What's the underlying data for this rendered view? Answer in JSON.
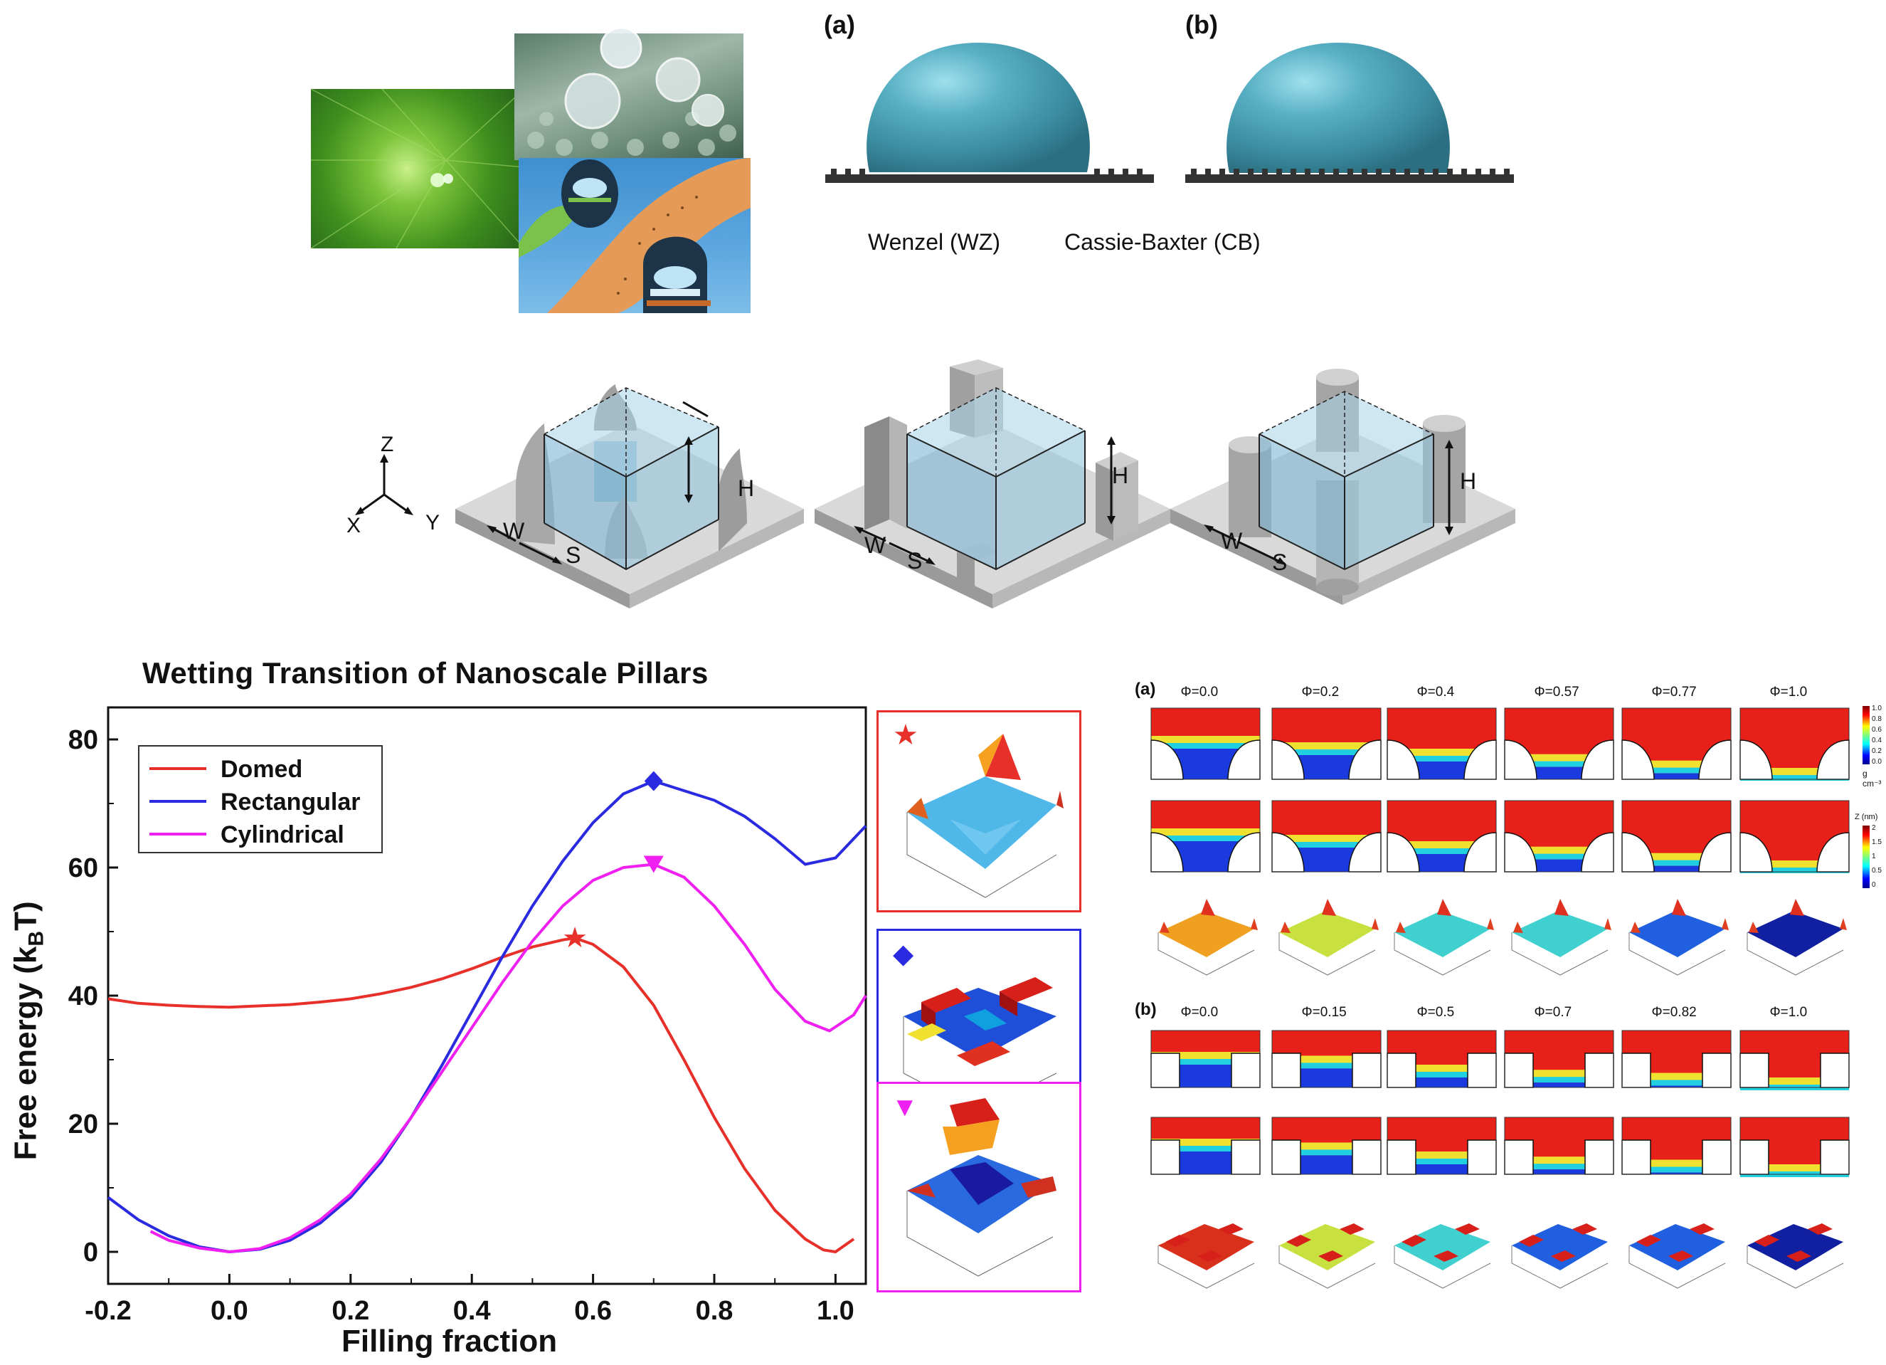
{
  "top": {
    "panel_a_label": "(a)",
    "panel_b_label": "(b)",
    "caption_wz": "Wenzel (WZ)",
    "caption_cb": "Cassie-Baxter (CB)"
  },
  "pillars": {
    "axis_z": "Z",
    "axis_x": "X",
    "axis_y": "Y",
    "w": "W",
    "s": "S",
    "h": "H"
  },
  "chart_data": {
    "type": "line",
    "title": "Wetting Transition of Nanoscale Pillars",
    "xlabel": "Filling fraction",
    "ylabel_main": "Free energy (k",
    "ylabel_sub": "B",
    "ylabel_end": "T)",
    "xlim": [
      -0.2,
      1.05
    ],
    "ylim": [
      -5,
      85
    ],
    "xticks": [
      "-0.2",
      "0.0",
      "0.2",
      "0.4",
      "0.6",
      "0.8",
      "1.0"
    ],
    "yticks": [
      "0",
      "20",
      "40",
      "60",
      "80"
    ],
    "legend_position": "top-left",
    "series": [
      {
        "name": "Domed",
        "color": "#e8302a",
        "marker": "star",
        "marker_at": [
          0.57,
          49
        ],
        "points": [
          [
            -0.2,
            39.5
          ],
          [
            -0.15,
            38.8
          ],
          [
            -0.1,
            38.5
          ],
          [
            -0.05,
            38.3
          ],
          [
            0.0,
            38.2
          ],
          [
            0.05,
            38.4
          ],
          [
            0.1,
            38.6
          ],
          [
            0.15,
            39.0
          ],
          [
            0.2,
            39.5
          ],
          [
            0.25,
            40.3
          ],
          [
            0.3,
            41.3
          ],
          [
            0.35,
            42.6
          ],
          [
            0.4,
            44.2
          ],
          [
            0.45,
            46.0
          ],
          [
            0.5,
            47.6
          ],
          [
            0.55,
            48.7
          ],
          [
            0.57,
            49.0
          ],
          [
            0.6,
            48.0
          ],
          [
            0.65,
            44.5
          ],
          [
            0.7,
            38.5
          ],
          [
            0.75,
            30.0
          ],
          [
            0.8,
            21.0
          ],
          [
            0.85,
            13.0
          ],
          [
            0.9,
            6.5
          ],
          [
            0.95,
            2.0
          ],
          [
            0.98,
            0.3
          ],
          [
            1.0,
            0.0
          ],
          [
            1.03,
            2.0
          ]
        ]
      },
      {
        "name": "Rectangular",
        "color": "#2a2ae0",
        "marker": "diamond",
        "marker_at": [
          0.7,
          73.5
        ],
        "points": [
          [
            -0.2,
            8.5
          ],
          [
            -0.15,
            5.0
          ],
          [
            -0.1,
            2.5
          ],
          [
            -0.05,
            0.8
          ],
          [
            0.0,
            0.0
          ],
          [
            0.05,
            0.4
          ],
          [
            0.1,
            1.8
          ],
          [
            0.15,
            4.5
          ],
          [
            0.2,
            8.5
          ],
          [
            0.25,
            14.0
          ],
          [
            0.3,
            21.0
          ],
          [
            0.35,
            29.0
          ],
          [
            0.4,
            37.5
          ],
          [
            0.45,
            46.0
          ],
          [
            0.5,
            54.0
          ],
          [
            0.55,
            61.0
          ],
          [
            0.6,
            67.0
          ],
          [
            0.65,
            71.5
          ],
          [
            0.7,
            73.5
          ],
          [
            0.75,
            72.0
          ],
          [
            0.8,
            70.5
          ],
          [
            0.85,
            68.0
          ],
          [
            0.9,
            64.5
          ],
          [
            0.95,
            60.5
          ],
          [
            1.0,
            61.5
          ],
          [
            1.05,
            66.5
          ]
        ]
      },
      {
        "name": "Cylindrical",
        "color": "#f020f0",
        "marker": "triangle-down",
        "marker_at": [
          0.7,
          60.5
        ],
        "points": [
          [
            -0.13,
            3.2
          ],
          [
            -0.1,
            1.8
          ],
          [
            -0.05,
            0.6
          ],
          [
            0.0,
            0.0
          ],
          [
            0.05,
            0.5
          ],
          [
            0.1,
            2.2
          ],
          [
            0.15,
            5.0
          ],
          [
            0.2,
            9.0
          ],
          [
            0.25,
            14.5
          ],
          [
            0.3,
            21.0
          ],
          [
            0.35,
            28.0
          ],
          [
            0.4,
            35.0
          ],
          [
            0.45,
            42.0
          ],
          [
            0.5,
            48.5
          ],
          [
            0.55,
            54.0
          ],
          [
            0.6,
            58.0
          ],
          [
            0.65,
            60.0
          ],
          [
            0.7,
            60.5
          ],
          [
            0.75,
            58.5
          ],
          [
            0.8,
            54.0
          ],
          [
            0.85,
            48.0
          ],
          [
            0.9,
            41.0
          ],
          [
            0.95,
            36.0
          ],
          [
            0.99,
            34.5
          ],
          [
            1.03,
            37.0
          ],
          [
            1.05,
            40.0
          ]
        ]
      }
    ]
  },
  "right": {
    "label_a": "(a)",
    "label_b": "(b)",
    "phis_a": [
      "Φ=0.0",
      "Φ=0.2",
      "Φ=0.4",
      "Φ=0.57",
      "Φ=0.77",
      "Φ=1.0"
    ],
    "phis_b": [
      "Φ=0.0",
      "Φ=0.15",
      "Φ=0.5",
      "Φ=0.7",
      "Φ=0.82",
      "Φ=1.0"
    ],
    "fill_levels_a": [
      0.0,
      0.2,
      0.4,
      0.57,
      0.77,
      1.0
    ],
    "fill_levels_b": [
      0.0,
      0.15,
      0.5,
      0.7,
      0.82,
      1.0
    ],
    "colorbar_ticks_rho": [
      "1.0",
      "0.8",
      "0.6",
      "0.4",
      "0.2",
      "0.0"
    ],
    "colorbar_unit": "g cm⁻³",
    "colorbar_ticks_z": [
      "2",
      "1.5",
      "1",
      "0.5",
      "0"
    ],
    "colorbar_z_title": "Z (nm)"
  }
}
